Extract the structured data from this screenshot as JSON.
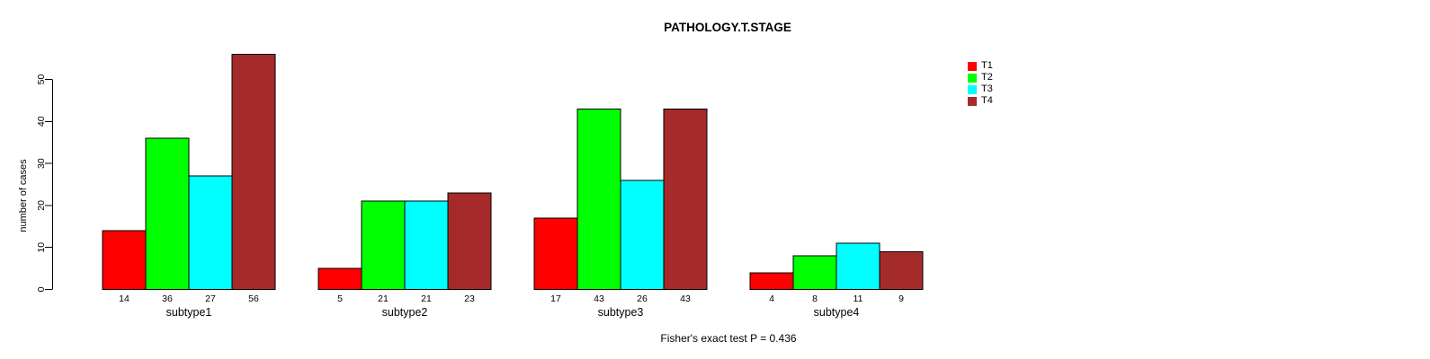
{
  "chart_data": {
    "type": "bar",
    "title": "PATHOLOGY.T.STAGE",
    "ylabel": "number of cases",
    "xlabel": "",
    "annotation": "Fisher's exact test P = 0.436",
    "yticks": [
      0,
      10,
      20,
      30,
      40,
      50
    ],
    "ylim": [
      0,
      56
    ],
    "grid": false,
    "legend_position": "top-right",
    "bar_border_color": "#000000",
    "background_color": "#ffffff",
    "categories": [
      "subtype1",
      "subtype2",
      "subtype3",
      "subtype4"
    ],
    "series": [
      {
        "name": "T1",
        "color": "#ff0000",
        "values": [
          14,
          5,
          17,
          4
        ]
      },
      {
        "name": "T2",
        "color": "#00ff00",
        "values": [
          36,
          21,
          43,
          8
        ]
      },
      {
        "name": "T3",
        "color": "#00ffff",
        "values": [
          27,
          21,
          26,
          11
        ]
      },
      {
        "name": "T4",
        "color": "#a52a2a",
        "values": [
          56,
          23,
          43,
          9
        ]
      }
    ]
  }
}
